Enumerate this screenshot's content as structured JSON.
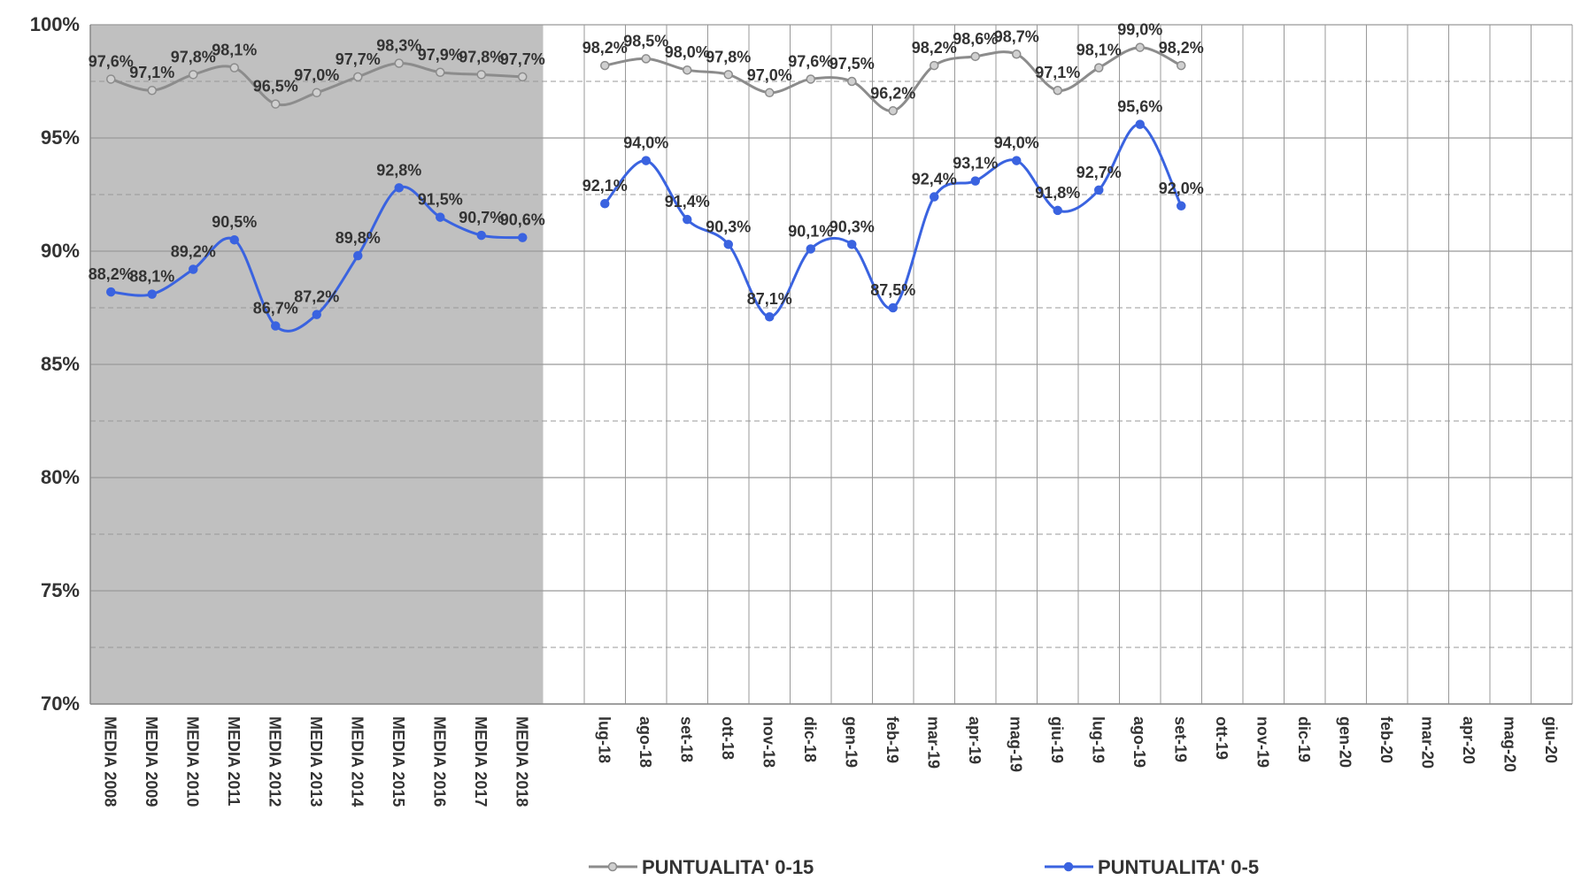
{
  "chart_data": {
    "type": "line",
    "categories": [
      "MEDIA 2008",
      "MEDIA 2009",
      "MEDIA 2010",
      "MEDIA 2011",
      "MEDIA 2012",
      "MEDIA 2013",
      "MEDIA 2014",
      "MEDIA 2015",
      "MEDIA 2016",
      "MEDIA 2017",
      "MEDIA 2018",
      null,
      "lug-18",
      "ago-18",
      "set-18",
      "ott-18",
      "nov-18",
      "dic-18",
      "gen-19",
      "feb-19",
      "mar-19",
      "apr-19",
      "mag-19",
      "giu-19",
      "lug-19",
      "ago-19",
      "set-19",
      "ott-19",
      "nov-19",
      "dic-19",
      "gen-20",
      "feb-20",
      "mar-20",
      "apr-20",
      "mag-20",
      "giu-20"
    ],
    "series": [
      {
        "name": "PUNTUALITA' 0-15",
        "color": "#8c8c8c",
        "values": [
          97.6,
          97.1,
          97.8,
          98.1,
          96.5,
          97.0,
          97.7,
          98.3,
          97.9,
          97.8,
          97.7,
          null,
          98.2,
          98.5,
          98.0,
          97.8,
          97.0,
          97.6,
          97.5,
          96.2,
          98.2,
          98.6,
          98.7,
          97.1,
          98.1,
          99.0,
          98.2,
          null,
          null,
          null,
          null,
          null,
          null,
          null,
          null,
          null
        ],
        "value_labels": [
          "97,6%",
          "97,1%",
          "97,8%",
          "98,1%",
          "96,5%",
          "97,0%",
          "97,7%",
          "98,3%",
          "97,9%",
          "97,8%",
          "97,7%",
          null,
          "98,2%",
          "98,5%",
          "98,0%",
          "97,8%",
          "97,0%",
          "97,6%",
          "97,5%",
          "96,2%",
          "98,2%",
          "98,6%",
          "98,7%",
          "97,1%",
          "98,1%",
          "99,0%",
          "98,2%",
          null,
          null,
          null,
          null,
          null,
          null,
          null,
          null,
          null
        ]
      },
      {
        "name": "PUNTUALITA' 0-5",
        "color": "#3a63e0",
        "values": [
          88.2,
          88.1,
          89.2,
          90.5,
          86.7,
          87.2,
          89.8,
          92.8,
          91.5,
          90.7,
          90.6,
          null,
          92.1,
          94.0,
          91.4,
          90.3,
          87.1,
          90.1,
          90.3,
          87.5,
          92.4,
          93.1,
          94.0,
          91.8,
          92.7,
          95.6,
          92.0,
          null,
          null,
          null,
          null,
          null,
          null,
          null,
          null,
          null
        ],
        "value_labels": [
          "88,2%",
          "88,1%",
          "89,2%",
          "90,5%",
          "86,7%",
          "87,2%",
          "89,8%",
          "92,8%",
          "91,5%",
          "90,7%",
          "90,6%",
          null,
          "92,1%",
          "94,0%",
          "91,4%",
          "90,3%",
          "87,1%",
          "90,1%",
          "90,3%",
          "87,5%",
          "92,4%",
          "93,1%",
          "94,0%",
          "91,8%",
          "92,7%",
          "95,6%",
          "92,0%",
          null,
          null,
          null,
          null,
          null,
          null,
          null,
          null,
          null
        ]
      }
    ],
    "ylim": [
      70,
      100
    ],
    "yticks": [
      {
        "value": 70,
        "label": "70%"
      },
      {
        "value": 75,
        "label": "75%"
      },
      {
        "value": 80,
        "label": "80%"
      },
      {
        "value": 85,
        "label": "85%"
      },
      {
        "value": 90,
        "label": "90%"
      },
      {
        "value": 95,
        "label": "95%"
      },
      {
        "value": 100,
        "label": "100%"
      }
    ],
    "minor_yticks": [
      72.5,
      77.5,
      82.5,
      87.5,
      92.5,
      97.5
    ],
    "grid": true,
    "legend": "bottom"
  }
}
